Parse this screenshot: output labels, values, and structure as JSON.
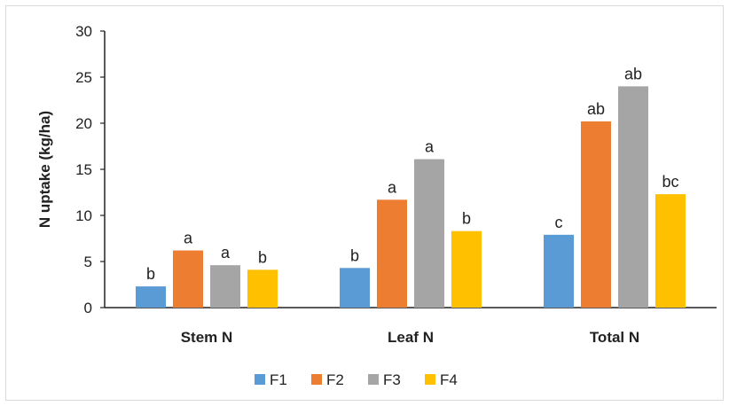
{
  "chart_data": {
    "type": "bar",
    "title": "",
    "xlabel": "",
    "ylabel": "N uptake (kg/ha)",
    "ylim": [
      0,
      30
    ],
    "yticks": [
      "0",
      "5",
      "10",
      "15",
      "20",
      "25",
      "30"
    ],
    "categories": [
      "Stem N",
      "Leaf N",
      "Total N"
    ],
    "series": [
      {
        "name": "F1",
        "color": "#5b9bd5",
        "values": [
          2.3,
          4.3,
          7.9
        ],
        "labels": [
          "b",
          "b",
          "c"
        ]
      },
      {
        "name": "F2",
        "color": "#ed7d31",
        "values": [
          6.2,
          11.7,
          20.2
        ],
        "labels": [
          "a",
          "a",
          "ab"
        ]
      },
      {
        "name": "F3",
        "color": "#a5a5a5",
        "values": [
          4.6,
          16.1,
          24.0
        ],
        "labels": [
          "a",
          "a",
          "ab"
        ]
      },
      {
        "name": "F4",
        "color": "#ffc000",
        "values": [
          4.1,
          8.3,
          12.3
        ],
        "labels": [
          "b",
          "b",
          "bc"
        ]
      }
    ],
    "grid": false,
    "legend_position": "bottom"
  }
}
